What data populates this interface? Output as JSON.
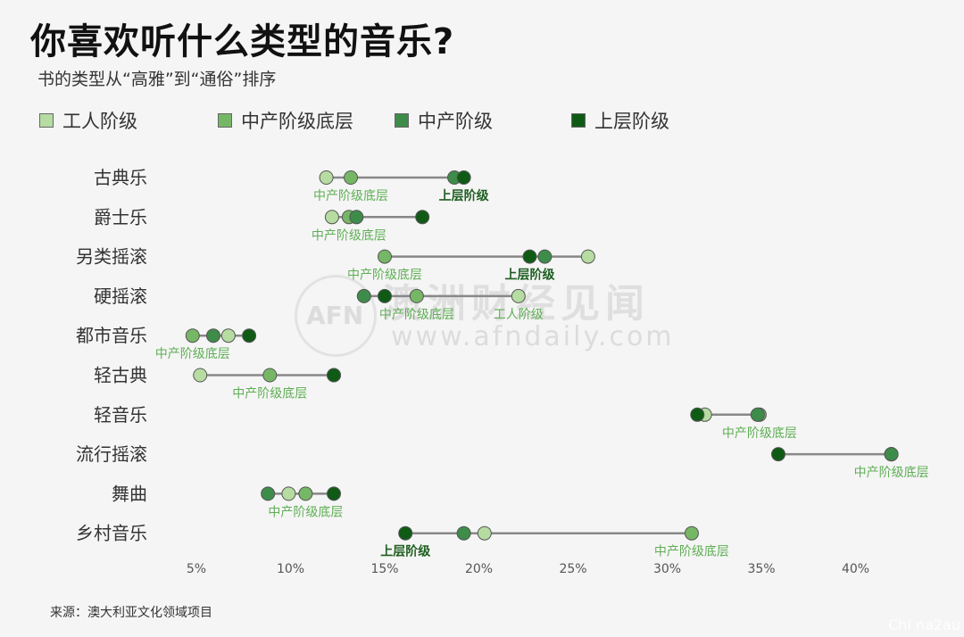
{
  "title": "你喜欢听什么类型的音乐?",
  "subtitle": "书的类型从“高雅”到“通俗”排序",
  "source": "来源：澳大利亚文化领域项目",
  "watermark": {
    "name": "澳洲财经见闻",
    "url": "www.afndaily.com",
    "logo": "AFN"
  },
  "corner_mark": "Chi na2au",
  "colors": {
    "工人阶级": "#b6dca2",
    "中产阶级底层": "#76b766",
    "中产阶级": "#3e8c4a",
    "上层阶级": "#0f5b16",
    "line": "#888888",
    "label": "#5fae55",
    "label_dark": "#1f5f22"
  },
  "chart_data": {
    "type": "dot_range",
    "title": "你喜欢听什么类型的音乐?",
    "subtitle": "书的类型从“高雅”到“通俗”排序",
    "xlabel": "",
    "ylabel": "",
    "xlim": [
      3,
      43
    ],
    "xticks": [
      "5%",
      "10%",
      "15%",
      "20%",
      "25%",
      "30%",
      "35%",
      "40%"
    ],
    "xtick_values": [
      5,
      10,
      15,
      20,
      25,
      30,
      35,
      40
    ],
    "legend_position": "top",
    "series_names": [
      "工人阶级",
      "中产阶级底层",
      "中产阶级",
      "上层阶级"
    ],
    "categories": [
      "古典乐",
      "爵士乐",
      "另类摇滚",
      "硬摇滚",
      "都市音乐",
      "轻古典",
      "轻音乐",
      "流行摇滚",
      "舞曲",
      "乡村音乐"
    ],
    "series": [
      {
        "name": "工人阶级",
        "values": [
          11.9,
          12.2,
          25.8,
          22.1,
          6.7,
          5.2,
          32.0,
          41.9,
          9.9,
          20.3
        ]
      },
      {
        "name": "中产阶级底层",
        "values": [
          13.2,
          13.1,
          15.0,
          16.7,
          4.8,
          8.9,
          34.9,
          41.9,
          10.8,
          31.3
        ]
      },
      {
        "name": "中产阶级",
        "values": [
          18.7,
          13.5,
          23.5,
          13.9,
          5.9,
          12.3,
          34.8,
          41.9,
          8.8,
          19.2
        ]
      },
      {
        "name": "上层阶级",
        "values": [
          19.2,
          17.0,
          22.7,
          15.0,
          7.8,
          12.3,
          31.6,
          35.9,
          12.3,
          16.1
        ]
      }
    ],
    "annotations": [
      {
        "category": "古典乐",
        "labels": [
          {
            "text": "中产阶级底层",
            "series": "中产阶级底层"
          },
          {
            "text": "上层阶级",
            "series": "上层阶级"
          }
        ]
      },
      {
        "category": "爵士乐",
        "labels": [
          {
            "text": "中产阶级底层",
            "series": "中产阶级底层"
          }
        ]
      },
      {
        "category": "另类摇滚",
        "labels": [
          {
            "text": "中产阶级底层",
            "series": "中产阶级底层"
          },
          {
            "text": "上层阶级",
            "series": "上层阶级"
          }
        ]
      },
      {
        "category": "硬摇滚",
        "labels": [
          {
            "text": "中产阶级底层",
            "series": "中产阶级底层"
          },
          {
            "text": "工人阶级",
            "series": "工人阶级"
          }
        ]
      },
      {
        "category": "都市音乐",
        "labels": [
          {
            "text": "中产阶级底层",
            "series": "中产阶级底层"
          }
        ]
      },
      {
        "category": "轻古典",
        "labels": [
          {
            "text": "中产阶级底层",
            "series": "中产阶级底层"
          }
        ]
      },
      {
        "category": "轻音乐",
        "labels": [
          {
            "text": "中产阶级底层",
            "series": "中产阶级底层"
          }
        ]
      },
      {
        "category": "流行摇滚",
        "labels": [
          {
            "text": "中产阶级底层",
            "series": "中产阶级底层"
          }
        ]
      },
      {
        "category": "舞曲",
        "labels": [
          {
            "text": "中产阶级底层",
            "series": "中产阶级底层"
          }
        ]
      },
      {
        "category": "乡村音乐",
        "labels": [
          {
            "text": "上层阶级",
            "series": "上层阶级"
          },
          {
            "text": "中产阶级底层",
            "series": "中产阶级底层"
          }
        ]
      }
    ]
  }
}
